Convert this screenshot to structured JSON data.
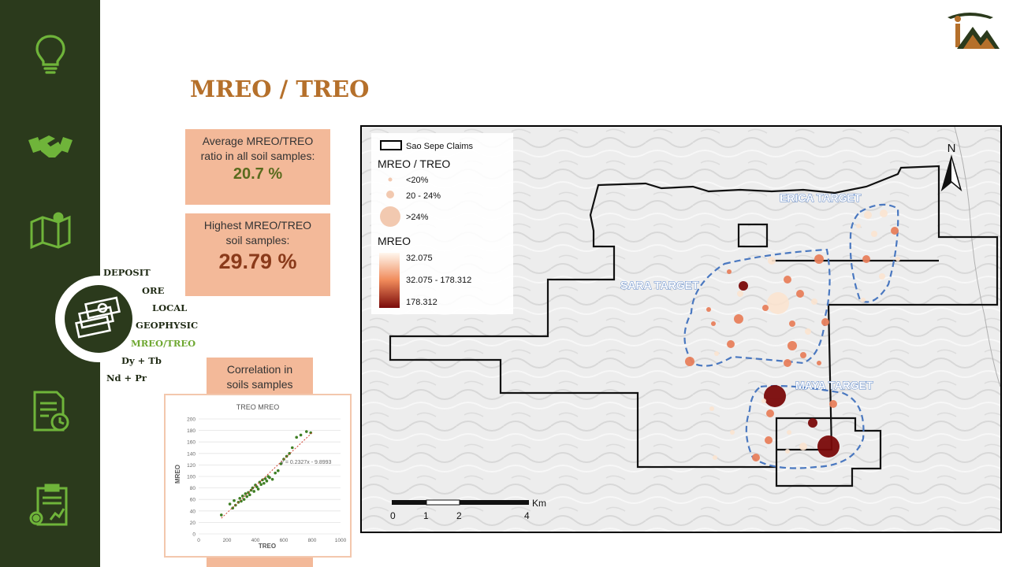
{
  "page": {
    "title": "MREO / TREO"
  },
  "sidebar": {
    "icons": [
      "lightbulb-icon",
      "handshake-icon",
      "map-icon",
      "report-icon",
      "clipboard-chart-icon"
    ],
    "active_icon": "money-stack-icon"
  },
  "nav": {
    "items": [
      {
        "label": "DEPOSIT"
      },
      {
        "label": "ORE"
      },
      {
        "label": "LOCAL"
      },
      {
        "label": "GEOPHYSIC"
      },
      {
        "label": "MREO/TREO"
      },
      {
        "label": "Dy + Tb"
      },
      {
        "label": "Nd + Pr"
      }
    ],
    "active": "MREO/TREO"
  },
  "cards": {
    "average": {
      "line1": "Average MREO/TREO",
      "line2": "ratio in all soil samples:",
      "value": "20.7 %"
    },
    "highest": {
      "line1": "Highest MREO/TREO",
      "line2": "soil samples:",
      "value": "29.79 %"
    },
    "correlation": {
      "line1": "Correlation in",
      "line2": "soils samples"
    }
  },
  "chart_data": {
    "type": "scatter",
    "title": "TREO MREO",
    "xlabel": "TREO",
    "ylabel": "MREO",
    "xlim": [
      0,
      1000
    ],
    "ylim": [
      0,
      200
    ],
    "x_ticks": [
      "0",
      "200",
      "400",
      "600",
      "800",
      "1000"
    ],
    "y_ticks": [
      "0",
      "20",
      "40",
      "60",
      "80",
      "100",
      "120",
      "140",
      "160",
      "180",
      "200"
    ],
    "trendline_label": "y = 0.2327x - 9.8993",
    "trendline": {
      "slope": 0.2327,
      "intercept": -9.8993
    },
    "points": [
      [
        160,
        33
      ],
      [
        220,
        52
      ],
      [
        240,
        45
      ],
      [
        250,
        58
      ],
      [
        260,
        50
      ],
      [
        280,
        55
      ],
      [
        290,
        62
      ],
      [
        300,
        57
      ],
      [
        310,
        66
      ],
      [
        320,
        60
      ],
      [
        330,
        70
      ],
      [
        340,
        65
      ],
      [
        350,
        72
      ],
      [
        360,
        68
      ],
      [
        370,
        76
      ],
      [
        380,
        80
      ],
      [
        390,
        74
      ],
      [
        400,
        85
      ],
      [
        410,
        82
      ],
      [
        420,
        78
      ],
      [
        430,
        90
      ],
      [
        440,
        86
      ],
      [
        450,
        94
      ],
      [
        460,
        88
      ],
      [
        470,
        96
      ],
      [
        480,
        92
      ],
      [
        490,
        100
      ],
      [
        500,
        98
      ],
      [
        520,
        95
      ],
      [
        540,
        106
      ],
      [
        560,
        110
      ],
      [
        580,
        122
      ],
      [
        600,
        130
      ],
      [
        620,
        135
      ],
      [
        640,
        140
      ],
      [
        660,
        150
      ],
      [
        690,
        168
      ],
      [
        720,
        172
      ],
      [
        760,
        178
      ],
      [
        790,
        176
      ]
    ],
    "color": "#3f7f24"
  },
  "map": {
    "legend": {
      "claims_label": "Sao Sepe Claims",
      "ratio_title": "MREO / TREO",
      "ratio_classes": [
        "<20%",
        "20 - 24%",
        ">24%"
      ],
      "mreo_title": "MREO",
      "mreo_classes": [
        "32.075",
        "32.075 - 178.312",
        "178.312"
      ]
    },
    "north_label": "N",
    "targets": [
      "ERICA TARGET",
      "SARA TARGET",
      "MAYA TARGET"
    ],
    "scale": {
      "labels": [
        "0",
        "1",
        "2",
        "4"
      ],
      "unit": "Km"
    },
    "colors": {
      "low": "#fbe3cf",
      "mid": "#e8805c",
      "high": "#7a0a0a",
      "target": "#4a78c0"
    }
  }
}
